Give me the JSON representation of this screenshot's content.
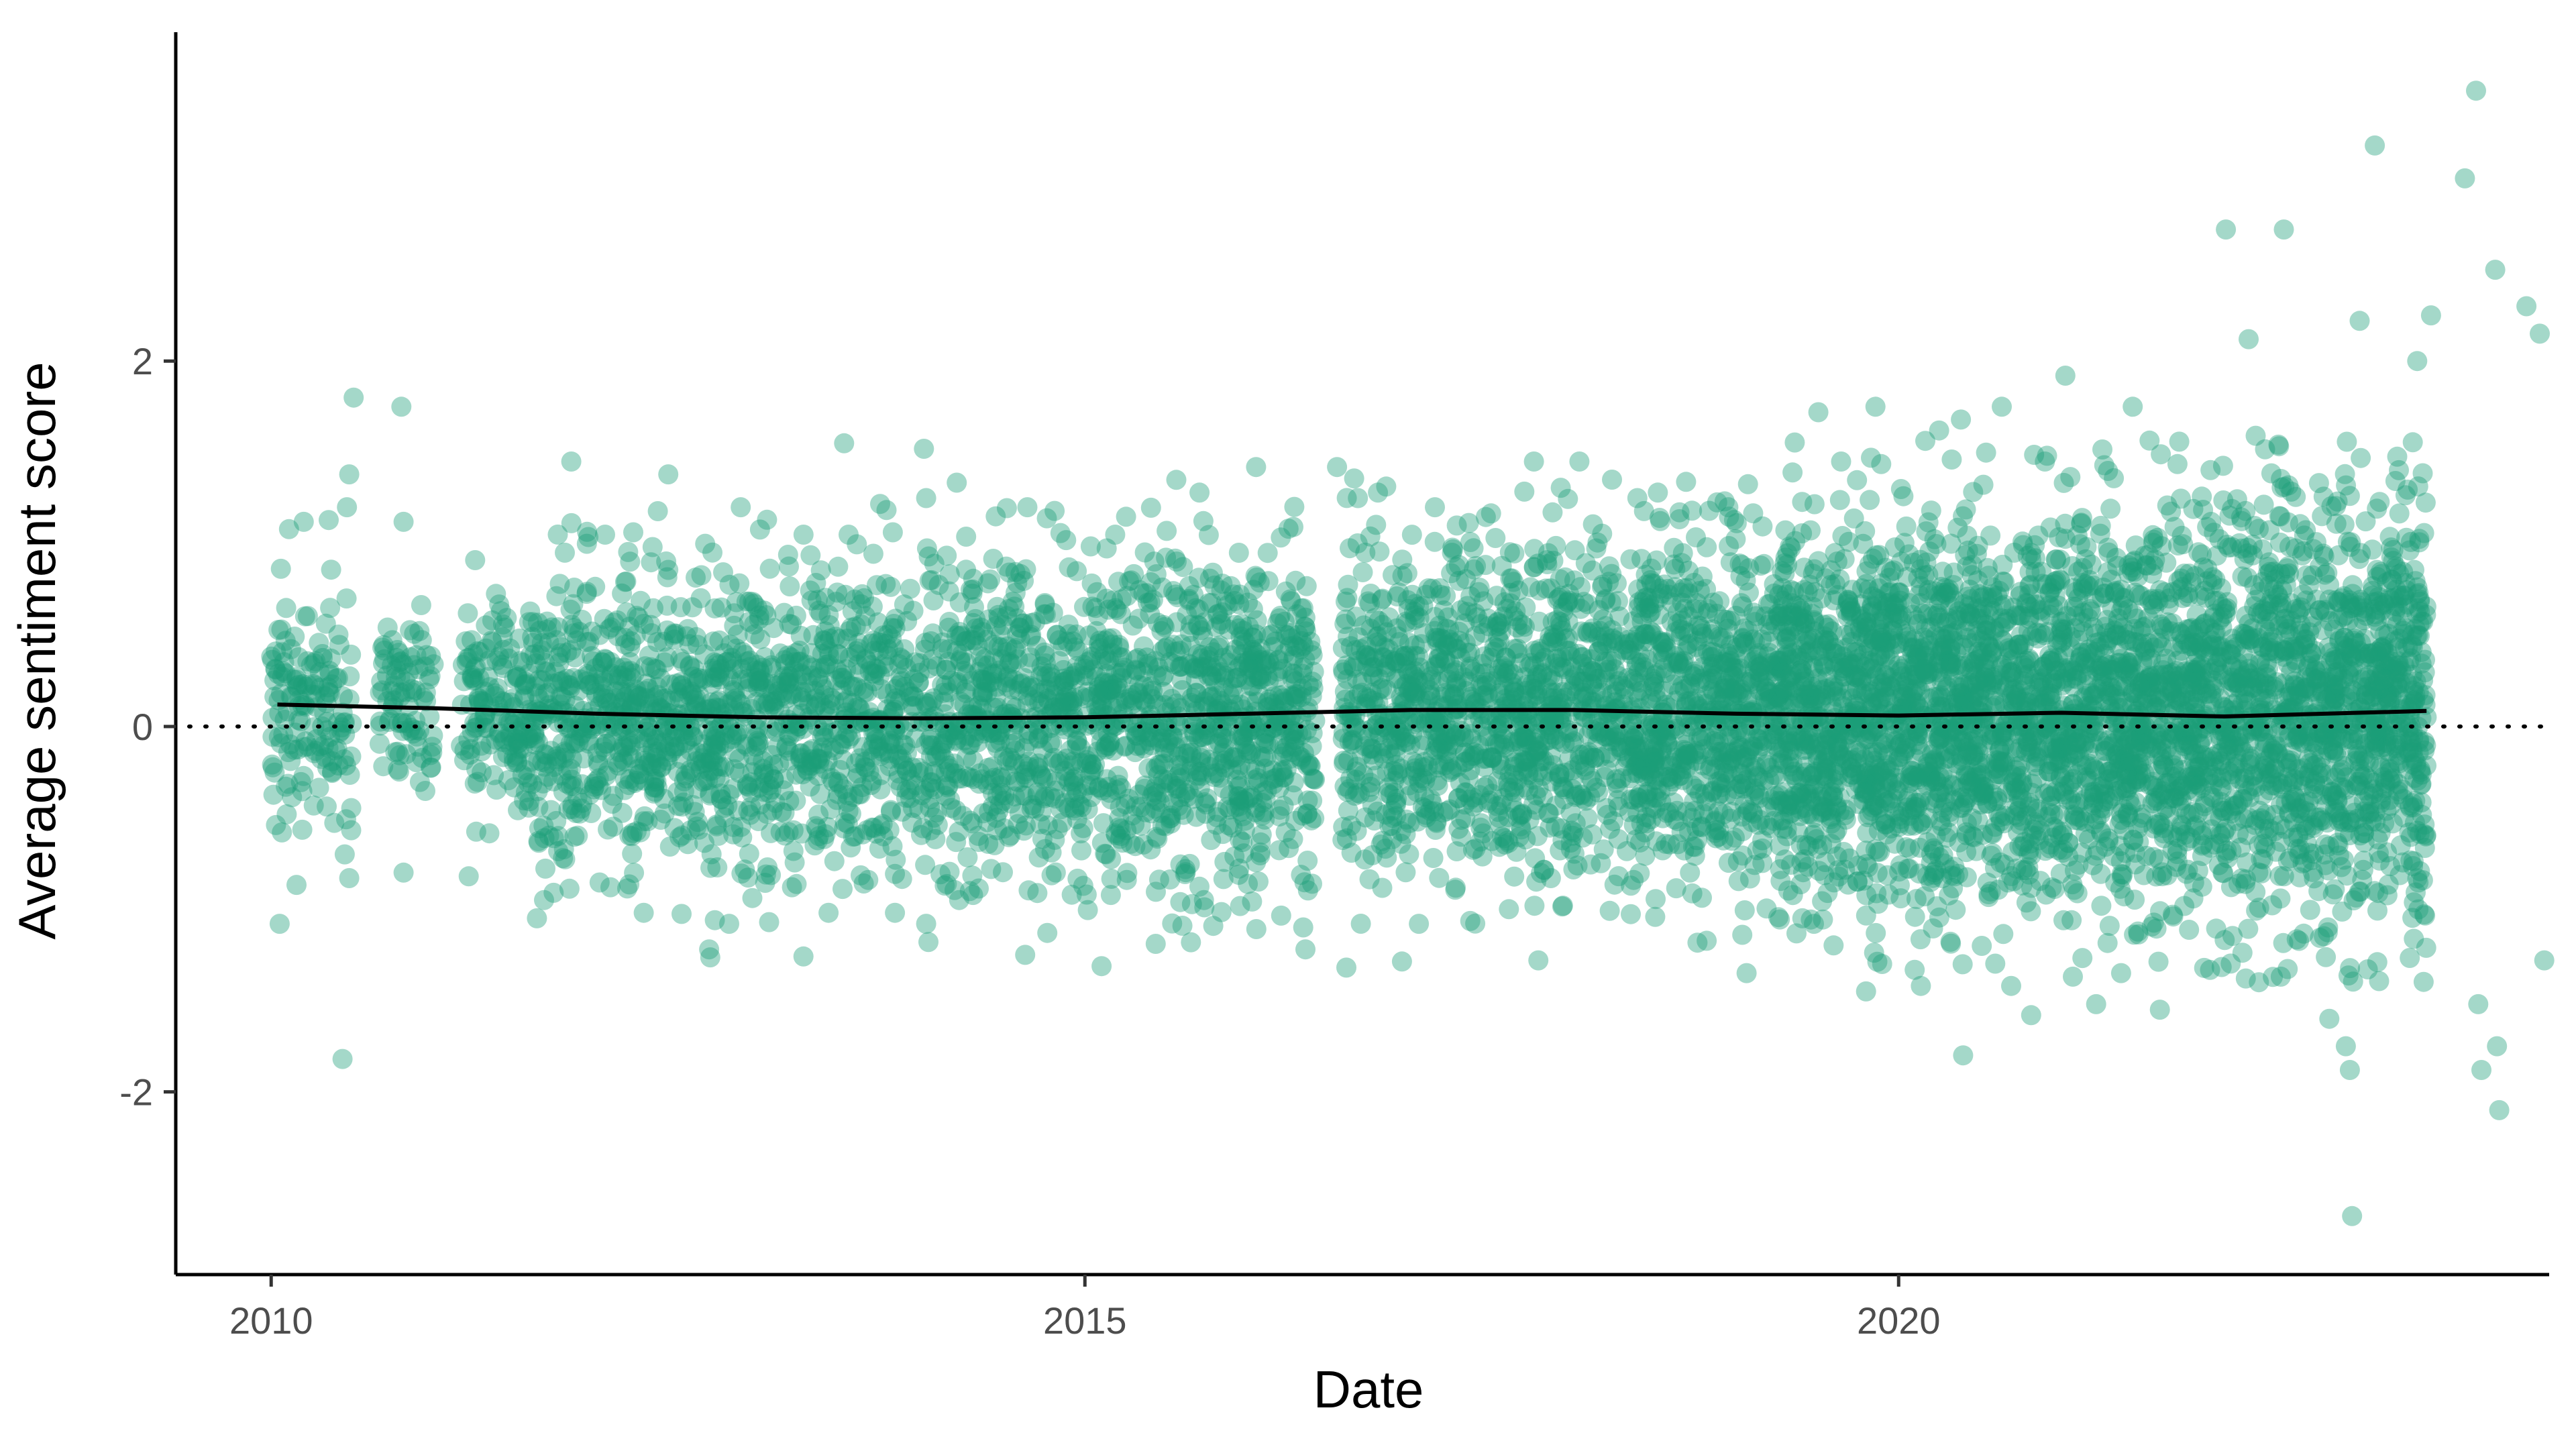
{
  "chart_data": {
    "type": "scatter",
    "title": "",
    "xlabel": "Date",
    "ylabel": "Average sentiment score",
    "x_ticks": [
      "2010",
      "2015",
      "2020"
    ],
    "y_ticks": [
      "-2",
      "0",
      "2"
    ],
    "xlim": [
      "2009-06-01",
      "2023-12-31"
    ],
    "ylim": [
      -3.0,
      3.8
    ],
    "grid": false,
    "legend": "none",
    "reference_line": {
      "y": 0,
      "style": "dotted"
    },
    "point_color": "#1b9e77",
    "line_color": "#000000",
    "trend": {
      "x": [
        "2010-01-15",
        "2011-01-01",
        "2012-01-01",
        "2013-01-01",
        "2014-01-01",
        "2015-01-01",
        "2016-01-01",
        "2017-01-01",
        "2018-01-01",
        "2019-01-01",
        "2020-01-01",
        "2021-01-01",
        "2022-01-01",
        "2023-03-31"
      ],
      "y": [
        0.12,
        0.1,
        0.07,
        0.05,
        0.045,
        0.05,
        0.07,
        0.09,
        0.09,
        0.07,
        0.06,
        0.075,
        0.055,
        0.085
      ]
    },
    "point_density": {
      "segments": [
        {
          "from": "2010-01-01",
          "to": "2010-07-01",
          "center": 0.1,
          "spread": 0.3,
          "count": 150
        },
        {
          "from": "2010-09-01",
          "to": "2011-01-01",
          "center": 0.15,
          "spread": 0.25,
          "count": 90
        },
        {
          "from": "2011-03-01",
          "to": "2011-07-01",
          "center": 0.1,
          "spread": 0.3,
          "count": 110
        },
        {
          "from": "2011-07-01",
          "to": "2012-03-01",
          "center": 0.07,
          "spread": 0.38,
          "count": 320
        },
        {
          "from": "2012-03-01",
          "to": "2014-03-01",
          "center": 0.05,
          "spread": 0.4,
          "count": 1000
        },
        {
          "from": "2014-03-01",
          "to": "2016-06-01",
          "center": 0.05,
          "spread": 0.42,
          "count": 1300
        },
        {
          "from": "2016-08-01",
          "to": "2018-05-01",
          "center": 0.09,
          "spread": 0.42,
          "count": 1100
        },
        {
          "from": "2018-05-01",
          "to": "2019-04-01",
          "center": 0.08,
          "spread": 0.45,
          "count": 700
        },
        {
          "from": "2019-04-01",
          "to": "2021-01-01",
          "center": 0.06,
          "spread": 0.5,
          "count": 1700
        },
        {
          "from": "2021-01-01",
          "to": "2023-04-01",
          "center": 0.07,
          "spread": 0.55,
          "count": 2100
        }
      ],
      "gaps": [
        [
          "2010-07-01",
          "2010-09-01"
        ],
        [
          "2011-01-01",
          "2011-03-01"
        ],
        [
          "2016-06-01",
          "2016-08-01"
        ]
      ]
    },
    "outliers": [
      {
        "x": "2010-01-20",
        "y": -1.08
      },
      {
        "x": "2010-01-25",
        "y": -0.58
      },
      {
        "x": "2010-02-10",
        "y": 1.08
      },
      {
        "x": "2010-03-15",
        "y": 1.12
      },
      {
        "x": "2010-05-10",
        "y": 1.13
      },
      {
        "x": "2010-06-10",
        "y": -1.82
      },
      {
        "x": "2010-06-15",
        "y": -0.7
      },
      {
        "x": "2010-06-20",
        "y": 1.2
      },
      {
        "x": "2010-06-25",
        "y": 1.38
      },
      {
        "x": "2010-06-25",
        "y": -0.83
      },
      {
        "x": "2010-07-05",
        "y": 1.8
      },
      {
        "x": "2010-10-20",
        "y": 1.75
      },
      {
        "x": "2010-10-25",
        "y": 1.12
      },
      {
        "x": "2010-10-25",
        "y": -0.8
      },
      {
        "x": "2011-03-20",
        "y": -0.82
      },
      {
        "x": "2011-08-20",
        "y": -1.05
      },
      {
        "x": "2011-09-05",
        "y": -0.95
      },
      {
        "x": "2011-11-05",
        "y": 1.45
      },
      {
        "x": "2011-12-10",
        "y": 1.0
      },
      {
        "x": "2012-01-20",
        "y": 1.05
      },
      {
        "x": "2012-02-01",
        "y": -0.88
      },
      {
        "x": "2012-03-20",
        "y": -0.6
      },
      {
        "x": "2012-06-10",
        "y": 1.38
      },
      {
        "x": "2012-09-01",
        "y": 1.0
      },
      {
        "x": "2012-09-10",
        "y": -1.22
      },
      {
        "x": "2012-10-25",
        "y": -1.08
      },
      {
        "x": "2012-11-20",
        "y": 1.2
      },
      {
        "x": "2013-03-15",
        "y": -0.88
      },
      {
        "x": "2013-04-10",
        "y": 1.05
      },
      {
        "x": "2013-06-05",
        "y": -1.02
      },
      {
        "x": "2013-07-10",
        "y": 1.55
      },
      {
        "x": "2013-07-20",
        "y": 1.05
      },
      {
        "x": "2013-11-01",
        "y": -1.02
      },
      {
        "x": "2014-01-05",
        "y": 1.52
      },
      {
        "x": "2014-01-10",
        "y": 1.25
      },
      {
        "x": "2014-01-10",
        "y": -1.08
      },
      {
        "x": "2014-01-15",
        "y": -1.18
      },
      {
        "x": "2014-03-25",
        "y": -0.95
      },
      {
        "x": "2014-06-15",
        "y": 1.15
      },
      {
        "x": "2014-08-20",
        "y": -1.25
      },
      {
        "x": "2014-08-25",
        "y": 1.2
      },
      {
        "x": "2014-10-25",
        "y": 1.18
      },
      {
        "x": "2014-11-20",
        "y": 1.02
      },
      {
        "x": "2015-01-05",
        "y": -0.92
      },
      {
        "x": "2015-03-10",
        "y": 1.05
      },
      {
        "x": "2015-07-25",
        "y": 1.35
      },
      {
        "x": "2015-09-15",
        "y": 1.28
      },
      {
        "x": "2015-09-25",
        "y": -0.95
      },
      {
        "x": "2016-01-20",
        "y": 1.42
      },
      {
        "x": "2016-02-15",
        "y": 0.95
      },
      {
        "x": "2016-05-05",
        "y": -1.1
      },
      {
        "x": "2016-05-10",
        "y": -1.22
      },
      {
        "x": "2016-07-20",
        "y": 1.42
      },
      {
        "x": "2016-08-10",
        "y": -1.32
      },
      {
        "x": "2016-09-05",
        "y": 1.25
      },
      {
        "x": "2016-10-20",
        "y": 1.28
      },
      {
        "x": "2017-01-20",
        "y": -1.08
      },
      {
        "x": "2017-02-25",
        "y": 1.2
      },
      {
        "x": "2017-04-15",
        "y": 1.1
      },
      {
        "x": "2017-08-10",
        "y": -1.0
      },
      {
        "x": "2017-10-05",
        "y": 1.45
      },
      {
        "x": "2017-10-15",
        "y": -1.28
      },
      {
        "x": "2018-01-15",
        "y": 1.45
      },
      {
        "x": "2018-05-25",
        "y": 1.25
      },
      {
        "x": "2018-07-10",
        "y": 1.28
      },
      {
        "x": "2018-09-20",
        "y": -0.8
      },
      {
        "x": "2018-12-15",
        "y": 1.2
      },
      {
        "x": "2019-01-25",
        "y": -1.35
      },
      {
        "x": "2019-05-30",
        "y": -1.05
      },
      {
        "x": "2019-06-25",
        "y": -1.08
      },
      {
        "x": "2019-07-05",
        "y": 1.72
      },
      {
        "x": "2019-08-25",
        "y": 1.45
      },
      {
        "x": "2019-10-20",
        "y": -1.45
      },
      {
        "x": "2019-11-10",
        "y": 1.75
      },
      {
        "x": "2019-11-25",
        "y": -1.3
      },
      {
        "x": "2020-02-20",
        "y": -1.42
      },
      {
        "x": "2020-04-01",
        "y": 1.62
      },
      {
        "x": "2020-05-20",
        "y": 1.68
      },
      {
        "x": "2020-05-25",
        "y": -1.8
      },
      {
        "x": "2020-08-20",
        "y": 1.75
      },
      {
        "x": "2020-09-10",
        "y": -1.42
      },
      {
        "x": "2020-10-25",
        "y": -1.58
      },
      {
        "x": "2020-11-25",
        "y": 1.45
      },
      {
        "x": "2021-01-10",
        "y": 1.92
      },
      {
        "x": "2021-03-20",
        "y": -1.52
      },
      {
        "x": "2021-05-15",
        "y": -1.35
      },
      {
        "x": "2021-06-10",
        "y": 1.75
      },
      {
        "x": "2021-08-10",
        "y": -1.55
      },
      {
        "x": "2022-01-05",
        "y": 2.72
      },
      {
        "x": "2022-02-25",
        "y": 2.12
      },
      {
        "x": "2022-03-20",
        "y": -1.4
      },
      {
        "x": "2022-05-15",
        "y": 2.72
      },
      {
        "x": "2022-08-25",
        "y": -1.6
      },
      {
        "x": "2022-10-01",
        "y": -1.75
      },
      {
        "x": "2022-10-10",
        "y": -1.88
      },
      {
        "x": "2022-10-15",
        "y": -2.68
      },
      {
        "x": "2022-11-01",
        "y": 2.22
      },
      {
        "x": "2022-12-05",
        "y": 3.18
      },
      {
        "x": "2023-03-10",
        "y": 2.0
      },
      {
        "x": "2023-04-10",
        "y": 2.25
      },
      {
        "x": "2023-06-25",
        "y": 3.0
      },
      {
        "x": "2023-07-20",
        "y": 3.48
      },
      {
        "x": "2023-07-25",
        "y": -1.52
      },
      {
        "x": "2023-08-01",
        "y": -1.88
      },
      {
        "x": "2023-09-01",
        "y": 2.5
      },
      {
        "x": "2023-09-05",
        "y": -1.75
      },
      {
        "x": "2023-09-10",
        "y": -2.1
      },
      {
        "x": "2023-11-10",
        "y": 2.3
      },
      {
        "x": "2023-12-10",
        "y": 2.15
      },
      {
        "x": "2023-12-20",
        "y": -1.28
      }
    ]
  }
}
